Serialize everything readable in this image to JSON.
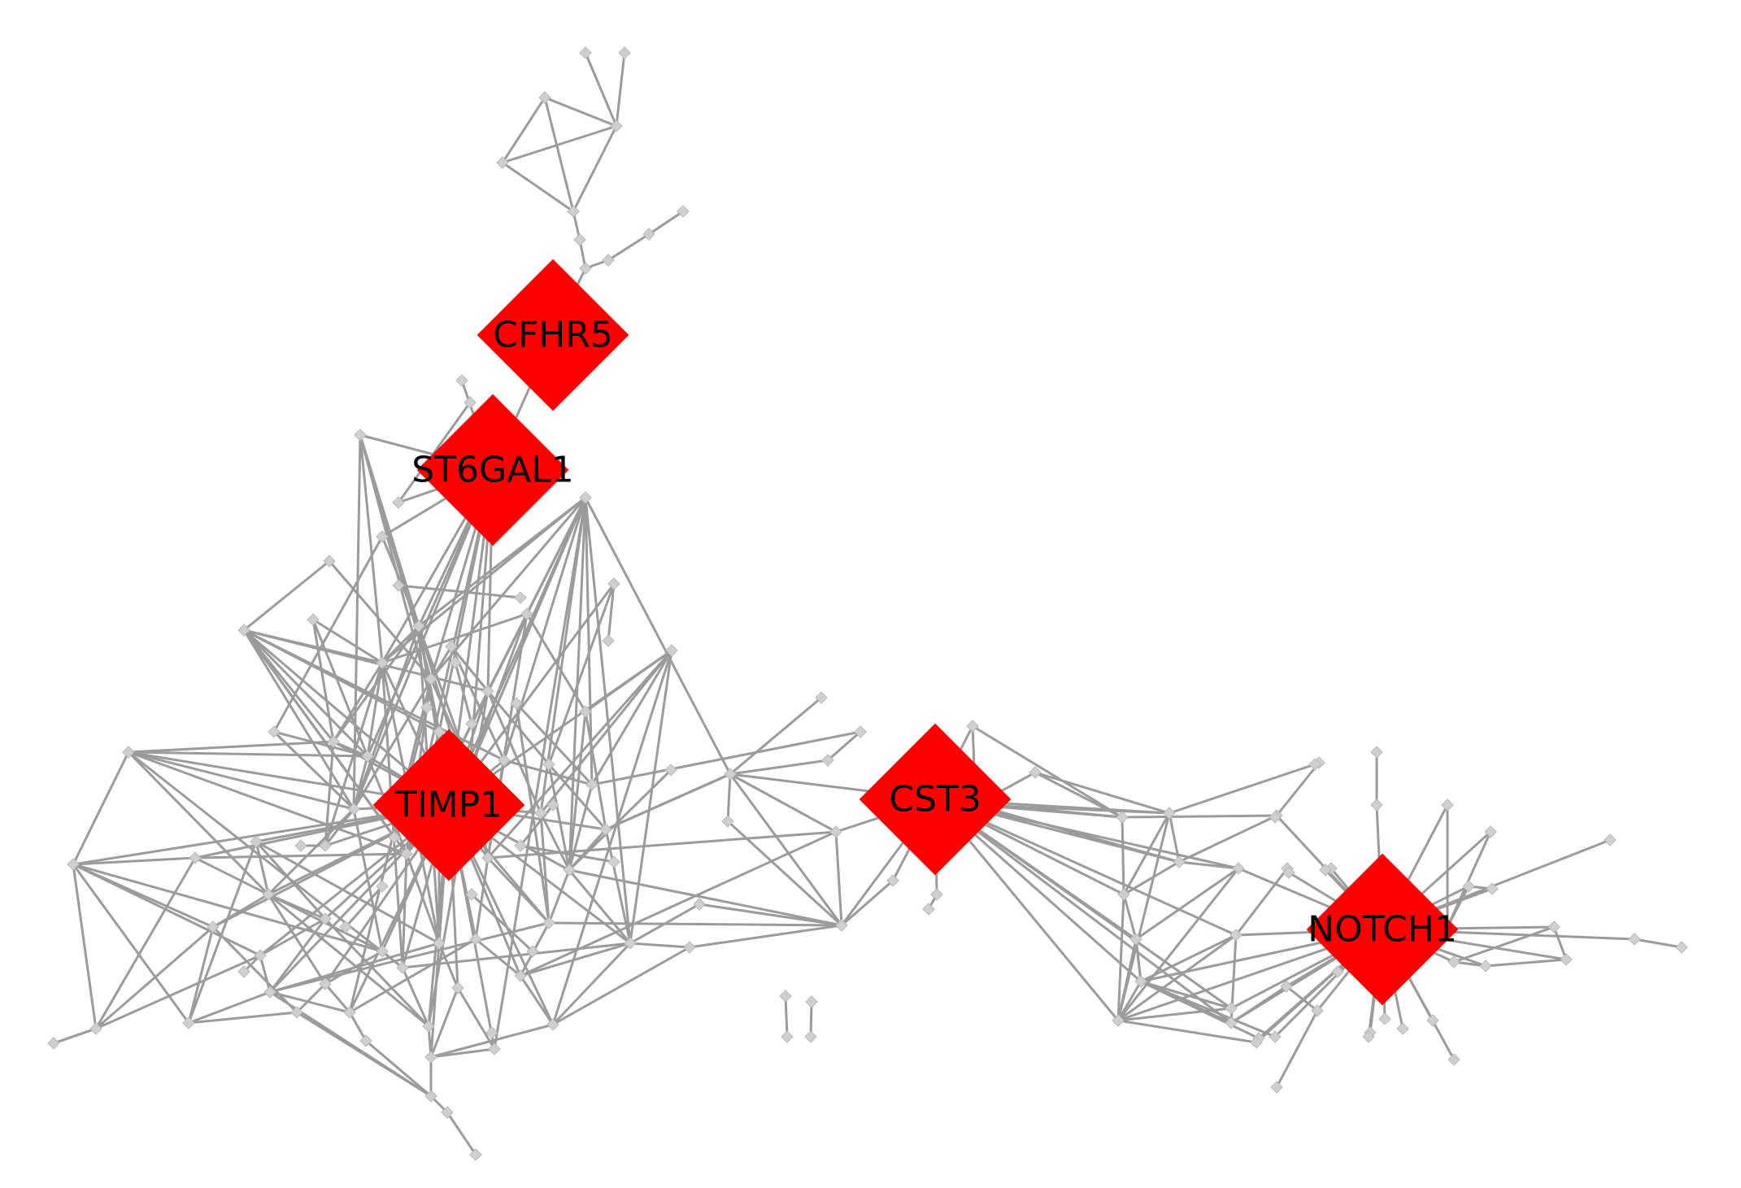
{
  "hubs": [
    {
      "id": "CFHR5",
      "label": "CFHR5"
    },
    {
      "id": "ST6GAL1",
      "label": "ST6GAL1"
    },
    {
      "id": "TIMP1",
      "label": "TIMP1"
    },
    {
      "id": "CST3",
      "label": "CST3"
    },
    {
      "id": "NOTCH1",
      "label": "NOTCH1"
    }
  ],
  "colors": {
    "hub": "#ff0000",
    "node": "#cfcfcf",
    "edge": "#9b9b9b",
    "label": "#000000",
    "background": "#ffffff"
  }
}
